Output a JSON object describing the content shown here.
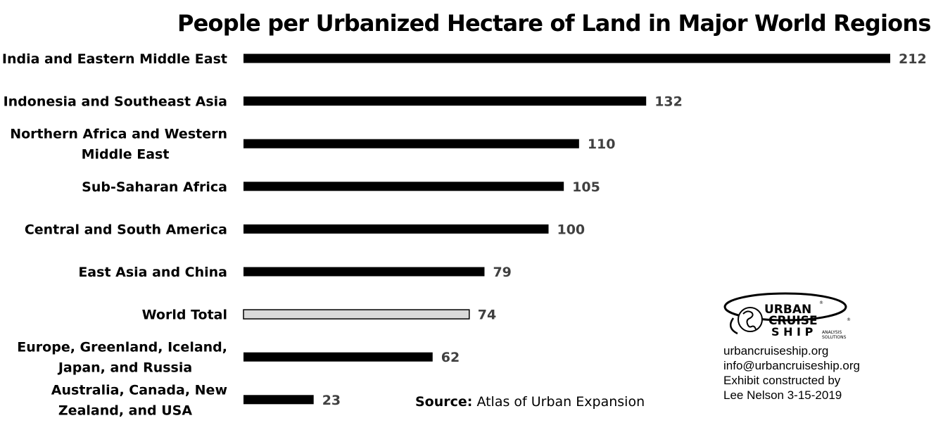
{
  "chart_data": {
    "type": "bar",
    "orientation": "horizontal",
    "title": "People per Urbanized Hectare of Land in Major World Regions",
    "categories": [
      "India and Eastern Middle East",
      "Indonesia and Southeast Asia",
      "Northern Africa and Western Middle East",
      "Sub-Saharan Africa",
      "Central and South America",
      "East Asia and China",
      "World Total",
      "Europe, Greenland, Iceland, Japan, and Russia",
      "Australia,  Canada, New Zealand, and USA"
    ],
    "category_lines": [
      [
        "India and Eastern Middle East"
      ],
      [
        "Indonesia and Southeast Asia"
      ],
      [
        "Northern Africa and Western",
        "Middle East"
      ],
      [
        "Sub-Saharan Africa"
      ],
      [
        "Central and South America"
      ],
      [
        "East Asia and China"
      ],
      [
        "World Total"
      ],
      [
        "Europe, Greenland, Iceland,",
        "Japan, and Russia"
      ],
      [
        "Australia,  Canada, New",
        "Zealand, and USA"
      ]
    ],
    "values": [
      212,
      132,
      110,
      105,
      100,
      79,
      74,
      62,
      23
    ],
    "data_labels": [
      "212",
      "132",
      "110",
      "105",
      "100",
      "79",
      "74",
      "62",
      "23"
    ],
    "highlight_index": 6,
    "bar_color": "#000000",
    "highlight_color": "#d9d9d9",
    "xlim": [
      0,
      212
    ],
    "grid": false,
    "legend": "none",
    "xlabel": "",
    "ylabel": ""
  },
  "source": {
    "label": "Source:",
    "text": "Atlas of Urban Expansion"
  },
  "logo": {
    "line1": "URBAN",
    "line2": "CRUISE",
    "line3": "S H I P",
    "tag1": "ANALYSIS",
    "tag2": "SOLUTIONS",
    "mark": "®"
  },
  "contact": {
    "website": "urbancruiseship.org",
    "email": "info@urbancruiseship.org",
    "credit": "Exhibit constructed by",
    "author": "Lee Nelson 3-15-2019"
  }
}
